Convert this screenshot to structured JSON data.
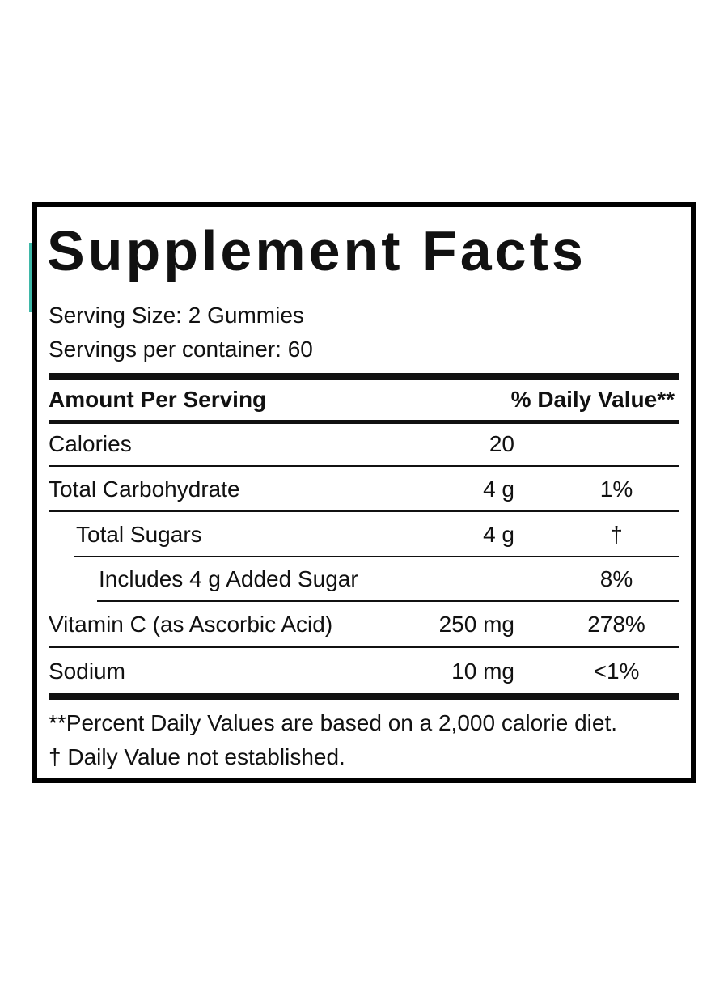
{
  "title": "Supplement Facts",
  "serving": {
    "size": "Serving Size: 2 Gummies",
    "per_container": "Servings per container: 60"
  },
  "table": {
    "header": {
      "amount": "Amount Per Serving",
      "daily_value": "% Daily Value**"
    },
    "rows": [
      {
        "name": "Calories",
        "amount": "20"
      },
      {
        "name": "Total Carbohydrate",
        "amount": "4 g",
        "daily_value": "1%"
      },
      {
        "name": "Total Sugars",
        "amount": "4 g",
        "daily_value": "†"
      },
      {
        "name": "Includes 4 g Added Sugar",
        "daily_value": "8%"
      },
      {
        "name": "Vitamin C (as Ascorbic Acid)",
        "amount": "250 mg",
        "daily_value": "278%"
      },
      {
        "name": "Sodium",
        "amount": "10 mg",
        "daily_value": "<1%"
      }
    ]
  },
  "footnotes": [
    "**Percent Daily Values are based on a 2,000 calorie diet.",
    "† Daily Value not established."
  ]
}
